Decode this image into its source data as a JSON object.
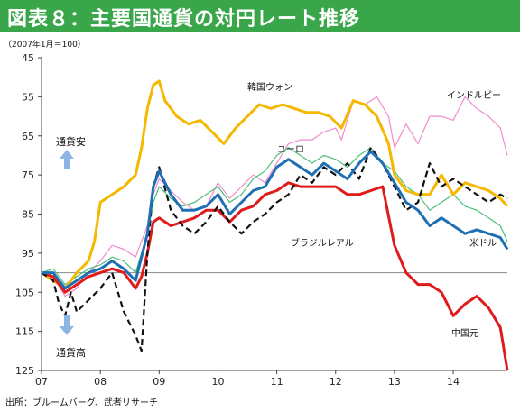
{
  "title": "図表８：主要国通貨の対円レート推移",
  "chart_data": {
    "type": "line",
    "title": "図表８：主要国通貨の対円レート推移",
    "index_note": "（2007年1月＝100）",
    "source": "出所：ブルームバーグ、武者リサーチ",
    "y_reversed": true,
    "ylim": [
      45,
      125
    ],
    "y_ticks": [
      45,
      55,
      65,
      75,
      85,
      95,
      105,
      115,
      125
    ],
    "x_ticks": [
      "07",
      "08",
      "09",
      "10",
      "11",
      "12",
      "13",
      "14"
    ],
    "x_range": [
      2007.0,
      2014.92
    ],
    "baseline": 100,
    "annotations": {
      "yen_weak": "通貨安",
      "yen_strong": "通貨高"
    },
    "colors": {
      "韓国ウォン": "#f5b700",
      "インドルピー": "#f08ccf",
      "ユーロ": "#4cbf7a",
      "米ドル": "#1f6fb5",
      "ブラジルレアル": "#111111",
      "中国元": "#e01b1b",
      "arrow": "#8eb4e3",
      "baseline": "#888888"
    },
    "series": [
      {
        "name": "韓国ウォン",
        "x": [
          2007.0,
          2007.2,
          2007.4,
          2007.6,
          2007.8,
          2007.9,
          2008.0,
          2008.2,
          2008.4,
          2008.6,
          2008.7,
          2008.8,
          2008.9,
          2009.0,
          2009.1,
          2009.3,
          2009.5,
          2009.7,
          2009.9,
          2010.1,
          2010.3,
          2010.5,
          2010.7,
          2010.9,
          2011.1,
          2011.3,
          2011.5,
          2011.7,
          2011.9,
          2012.1,
          2012.3,
          2012.5,
          2012.7,
          2012.9,
          2013.0,
          2013.2,
          2013.4,
          2013.6,
          2013.8,
          2014.0,
          2014.2,
          2014.4,
          2014.6,
          2014.8,
          2014.92
        ],
        "values": [
          100,
          102,
          104,
          100,
          97,
          92,
          82,
          80,
          78,
          75,
          68,
          58,
          52,
          51,
          56,
          60,
          62,
          61,
          64,
          67,
          63,
          60,
          57,
          58,
          57,
          58,
          59,
          59,
          60,
          63,
          56,
          57,
          60,
          67,
          75,
          79,
          80,
          80,
          75,
          80,
          77,
          78,
          79,
          81,
          83
        ]
      },
      {
        "name": "インドルピー",
        "x": [
          2007.0,
          2007.2,
          2007.4,
          2007.6,
          2007.8,
          2008.0,
          2008.2,
          2008.4,
          2008.6,
          2008.8,
          2008.9,
          2009.0,
          2009.2,
          2009.4,
          2009.6,
          2009.8,
          2010.0,
          2010.2,
          2010.4,
          2010.6,
          2010.8,
          2011.0,
          2011.2,
          2011.4,
          2011.6,
          2011.8,
          2012.0,
          2012.1,
          2012.3,
          2012.5,
          2012.7,
          2012.9,
          2013.0,
          2013.2,
          2013.4,
          2013.6,
          2013.8,
          2014.0,
          2014.2,
          2014.4,
          2014.6,
          2014.8,
          2014.92
        ],
        "values": [
          100,
          101,
          106,
          104,
          100,
          97,
          93,
          94,
          96,
          88,
          80,
          76,
          79,
          82,
          84,
          83,
          77,
          81,
          78,
          75,
          77,
          72,
          67,
          66,
          66,
          64,
          63,
          66,
          56,
          57,
          55,
          60,
          68,
          62,
          67,
          60,
          60,
          61,
          55,
          58,
          60,
          63,
          70
        ]
      },
      {
        "name": "ユーロ",
        "x": [
          2007.0,
          2007.2,
          2007.4,
          2007.6,
          2007.8,
          2008.0,
          2008.2,
          2008.4,
          2008.6,
          2008.8,
          2008.9,
          2009.0,
          2009.2,
          2009.4,
          2009.6,
          2009.8,
          2010.0,
          2010.2,
          2010.4,
          2010.6,
          2010.8,
          2011.0,
          2011.2,
          2011.4,
          2011.6,
          2011.8,
          2012.0,
          2012.2,
          2012.4,
          2012.6,
          2012.8,
          2013.0,
          2013.2,
          2013.4,
          2013.6,
          2013.8,
          2014.0,
          2014.2,
          2014.4,
          2014.6,
          2014.8,
          2014.92
        ],
        "values": [
          100,
          99,
          103,
          101,
          99,
          98,
          96,
          97,
          100,
          90,
          82,
          78,
          81,
          83,
          82,
          80,
          78,
          82,
          80,
          76,
          74,
          70,
          68,
          70,
          72,
          70,
          71,
          73,
          70,
          68,
          72,
          74,
          78,
          80,
          84,
          82,
          80,
          83,
          84,
          86,
          88,
          92
        ]
      },
      {
        "name": "米ドル",
        "x": [
          2007.0,
          2007.2,
          2007.4,
          2007.6,
          2007.8,
          2008.0,
          2008.2,
          2008.4,
          2008.6,
          2008.8,
          2008.9,
          2009.0,
          2009.2,
          2009.4,
          2009.6,
          2009.8,
          2010.0,
          2010.2,
          2010.4,
          2010.6,
          2010.8,
          2011.0,
          2011.2,
          2011.4,
          2011.6,
          2011.8,
          2012.0,
          2012.2,
          2012.4,
          2012.6,
          2012.8,
          2013.0,
          2013.2,
          2013.4,
          2013.6,
          2013.8,
          2014.0,
          2014.2,
          2014.4,
          2014.6,
          2014.8,
          2014.92
        ],
        "values": [
          100,
          100,
          104,
          102,
          100,
          99,
          97,
          99,
          102,
          90,
          78,
          74,
          80,
          84,
          84,
          83,
          80,
          85,
          82,
          79,
          78,
          73,
          71,
          73,
          75,
          72,
          74,
          76,
          72,
          69,
          72,
          77,
          82,
          84,
          88,
          86,
          88,
          90,
          89,
          90,
          91,
          94
        ]
      },
      {
        "name": "ブラジルレアル",
        "x": [
          2007.0,
          2007.2,
          2007.3,
          2007.4,
          2007.5,
          2007.6,
          2007.8,
          2008.0,
          2008.2,
          2008.4,
          2008.6,
          2008.7,
          2008.8,
          2008.9,
          2009.0,
          2009.2,
          2009.4,
          2009.6,
          2009.8,
          2010.0,
          2010.2,
          2010.4,
          2010.6,
          2010.8,
          2011.0,
          2011.2,
          2011.4,
          2011.6,
          2011.8,
          2012.0,
          2012.2,
          2012.4,
          2012.6,
          2012.8,
          2013.0,
          2013.2,
          2013.4,
          2013.6,
          2013.8,
          2014.0,
          2014.2,
          2014.4,
          2014.6,
          2014.8,
          2014.92
        ],
        "values": [
          100,
          102,
          108,
          111,
          105,
          110,
          107,
          104,
          100,
          110,
          116,
          120,
          95,
          78,
          73,
          84,
          88,
          90,
          87,
          83,
          87,
          90,
          87,
          85,
          82,
          80,
          75,
          77,
          73,
          75,
          72,
          76,
          68,
          72,
          78,
          84,
          82,
          72,
          78,
          76,
          78,
          80,
          82,
          80,
          81
        ]
      },
      {
        "name": "中国元",
        "x": [
          2007.0,
          2007.2,
          2007.4,
          2007.6,
          2007.8,
          2008.0,
          2008.2,
          2008.4,
          2008.6,
          2008.7,
          2008.8,
          2008.9,
          2009.0,
          2009.2,
          2009.4,
          2009.6,
          2009.8,
          2010.0,
          2010.2,
          2010.4,
          2010.6,
          2010.8,
          2011.0,
          2011.2,
          2011.4,
          2011.6,
          2011.8,
          2012.0,
          2012.2,
          2012.4,
          2012.6,
          2012.8,
          2013.0,
          2013.2,
          2013.4,
          2013.6,
          2013.8,
          2014.0,
          2014.2,
          2014.4,
          2014.6,
          2014.8,
          2014.92
        ],
        "values": [
          100,
          101,
          105,
          103,
          101,
          100,
          99,
          100,
          104,
          101,
          95,
          87,
          86,
          88,
          87,
          86,
          84,
          84,
          87,
          84,
          83,
          80,
          79,
          77,
          78,
          78,
          78,
          78,
          80,
          80,
          79,
          78,
          93,
          100,
          103,
          103,
          105,
          111,
          108,
          106,
          109,
          114,
          125
        ]
      }
    ],
    "series_labels": {
      "韓国ウォン": "韓国ウォン",
      "インドルピー": "インドルピー",
      "ユーロ": "ユーロ",
      "米ドル": "米ドル",
      "ブラジルレアル": "ブラジルレアル",
      "中国元": "中国元"
    }
  }
}
